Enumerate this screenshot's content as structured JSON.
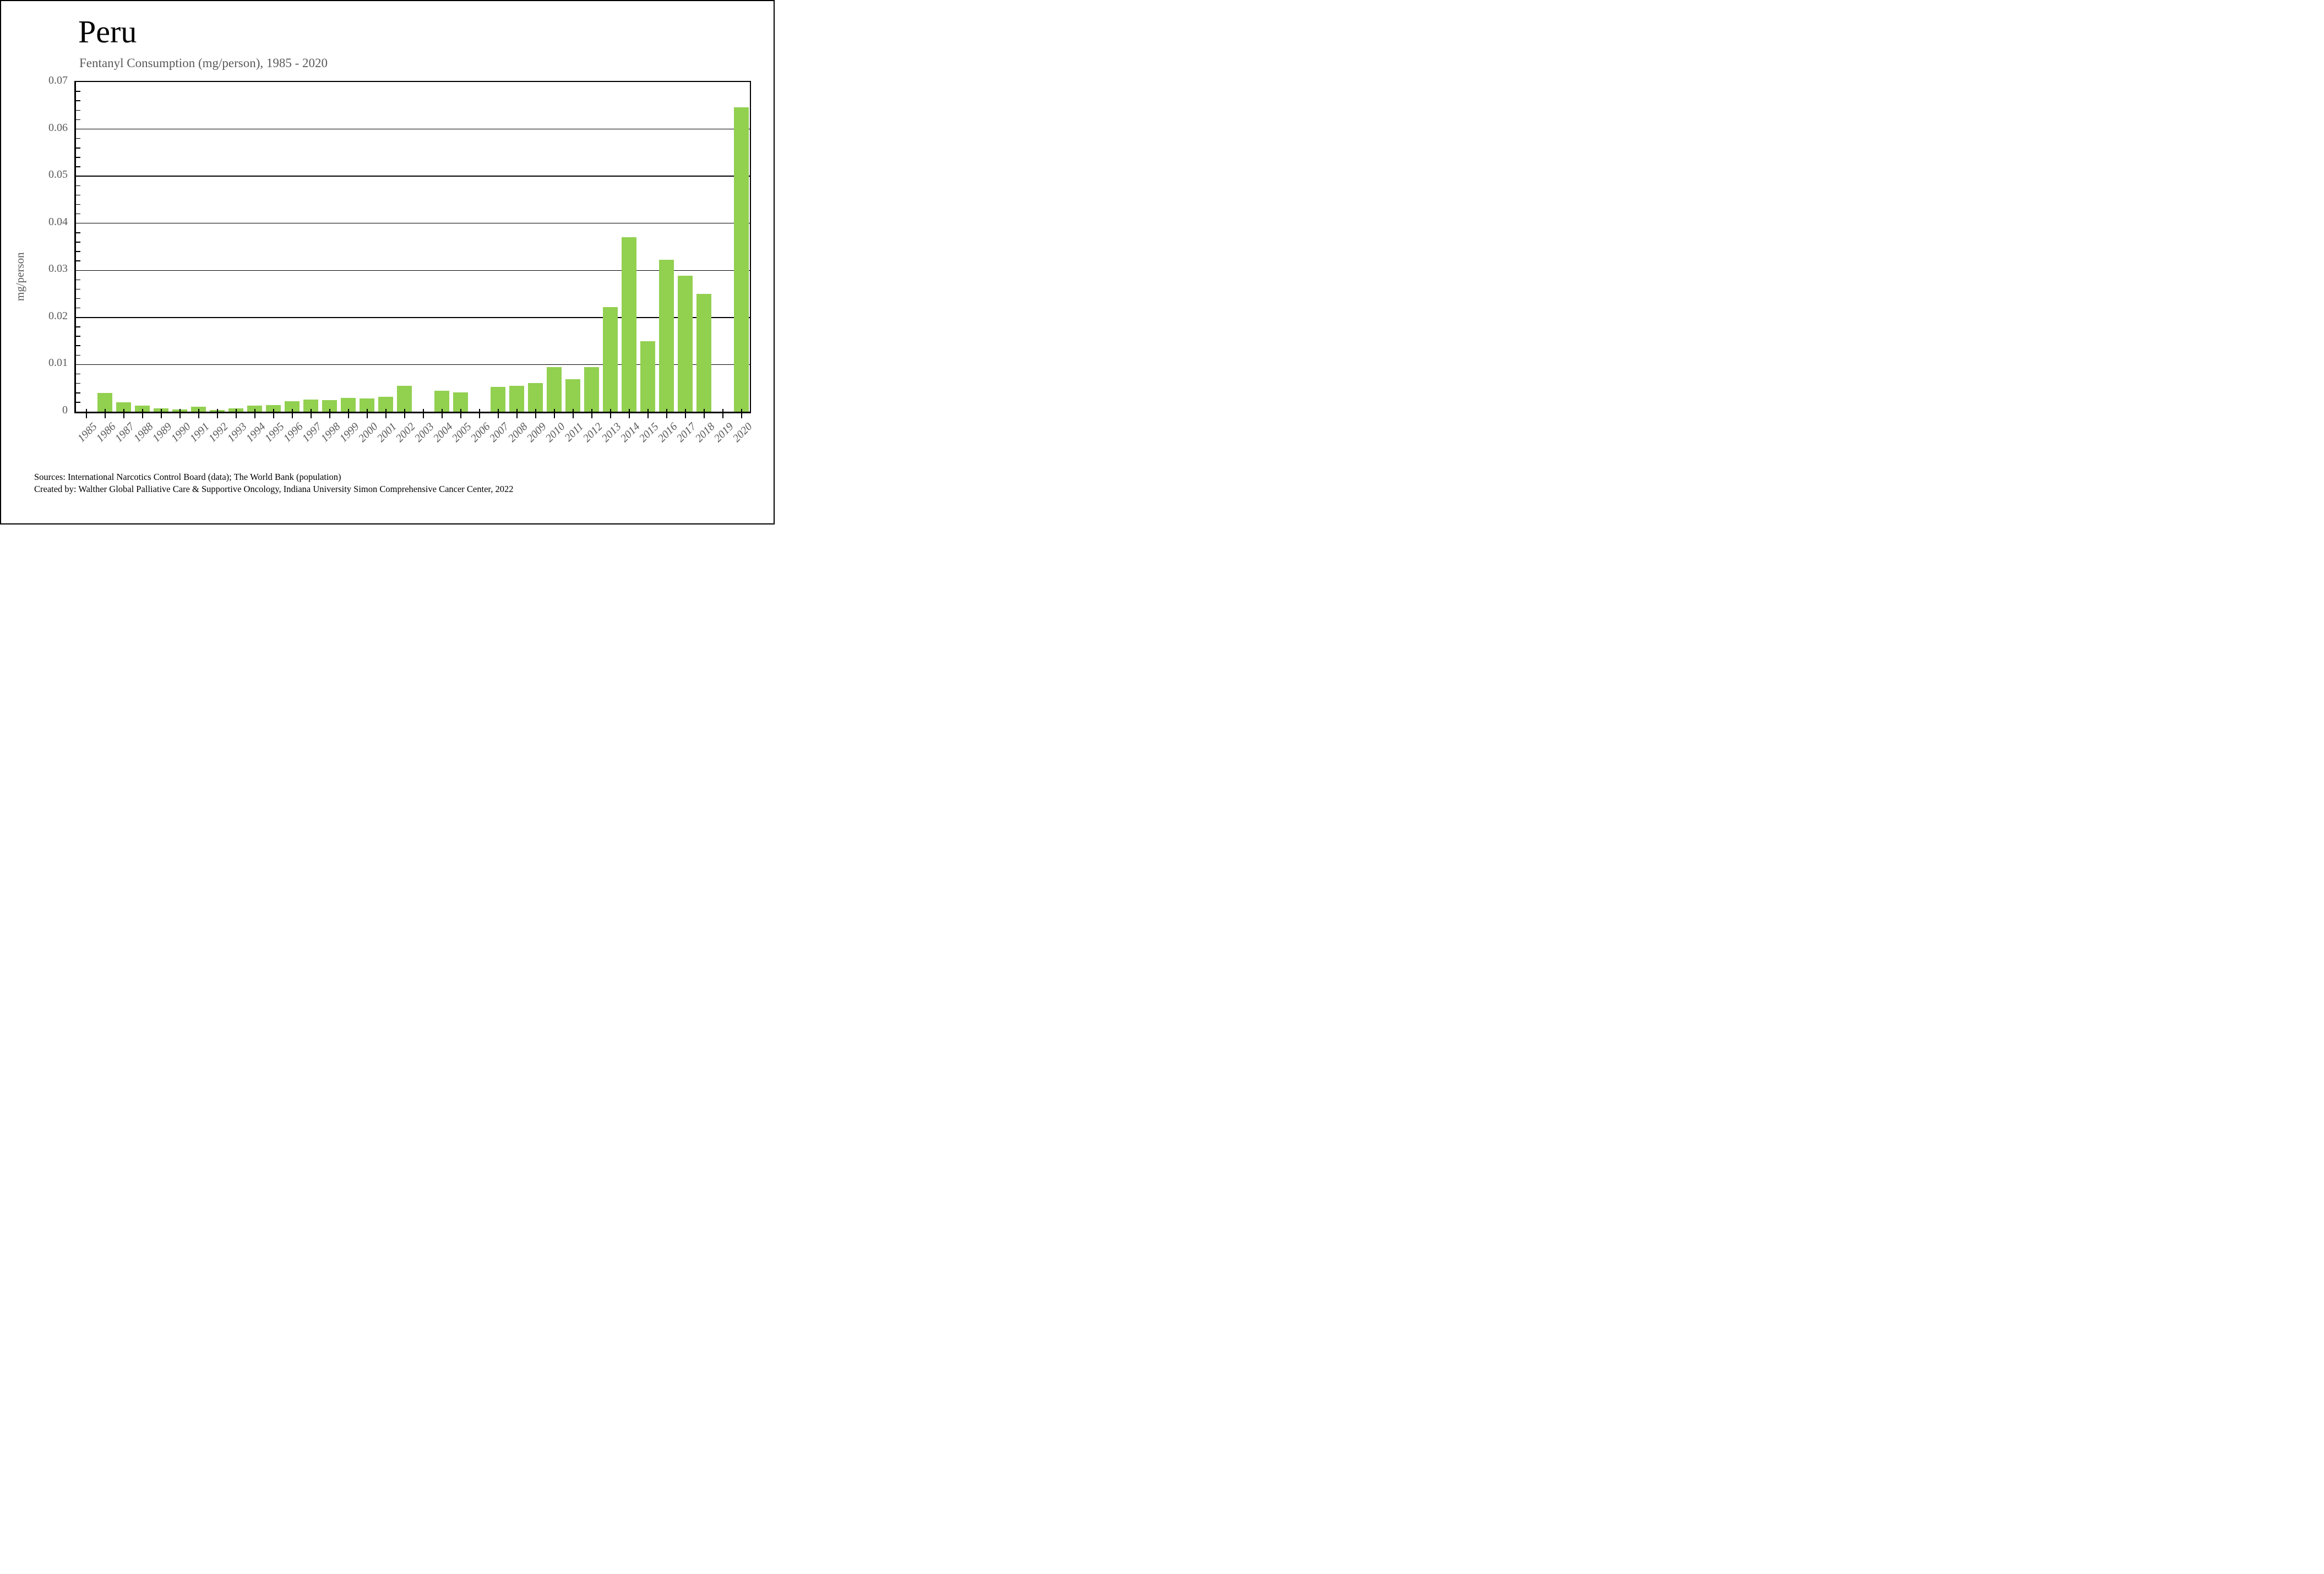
{
  "figure": {
    "footer": {
      "line1": "Sources: International Narcotics Control Board (data); The World Bank (population)",
      "line2": "Created by: Walther Global Palliative Care & Supportive Oncology, Indiana University Simon Comprehensive Cancer Center, 2022"
    }
  },
  "chart_data": {
    "type": "bar",
    "title": "Peru",
    "subtitle": "Fentanyl Consumption (mg/person), 1985 - 2020",
    "xlabel": "",
    "ylabel": "mg/person",
    "ylim": [
      0,
      0.07
    ],
    "ytick_step": 0.01,
    "y_minor_tick_step": 0.002,
    "grid": "horizontal",
    "legend": "none",
    "bar_color": "#92d050",
    "axis_text_color": "#595959",
    "categories": [
      1985,
      1986,
      1987,
      1988,
      1989,
      1990,
      1991,
      1992,
      1993,
      1994,
      1995,
      1996,
      1997,
      1998,
      1999,
      2000,
      2001,
      2002,
      2003,
      2004,
      2005,
      2006,
      2007,
      2008,
      2009,
      2010,
      2011,
      2012,
      2013,
      2014,
      2015,
      2016,
      2017,
      2018,
      2019,
      2020
    ],
    "values": [
      0,
      0.004,
      0.002,
      0.0013,
      0.0007,
      0.0005,
      0.001,
      0.0003,
      0.0007,
      0.0013,
      0.0014,
      0.0022,
      0.0026,
      0.0024,
      0.0029,
      0.0028,
      0.0032,
      0.0055,
      0,
      0.0045,
      0.0041,
      0,
      0.0053,
      0.0055,
      0.0061,
      0.0095,
      0.0069,
      0.0095,
      0.0222,
      0.0371,
      0.015,
      0.0322,
      0.0289,
      0.025,
      0,
      0.0646
    ]
  }
}
